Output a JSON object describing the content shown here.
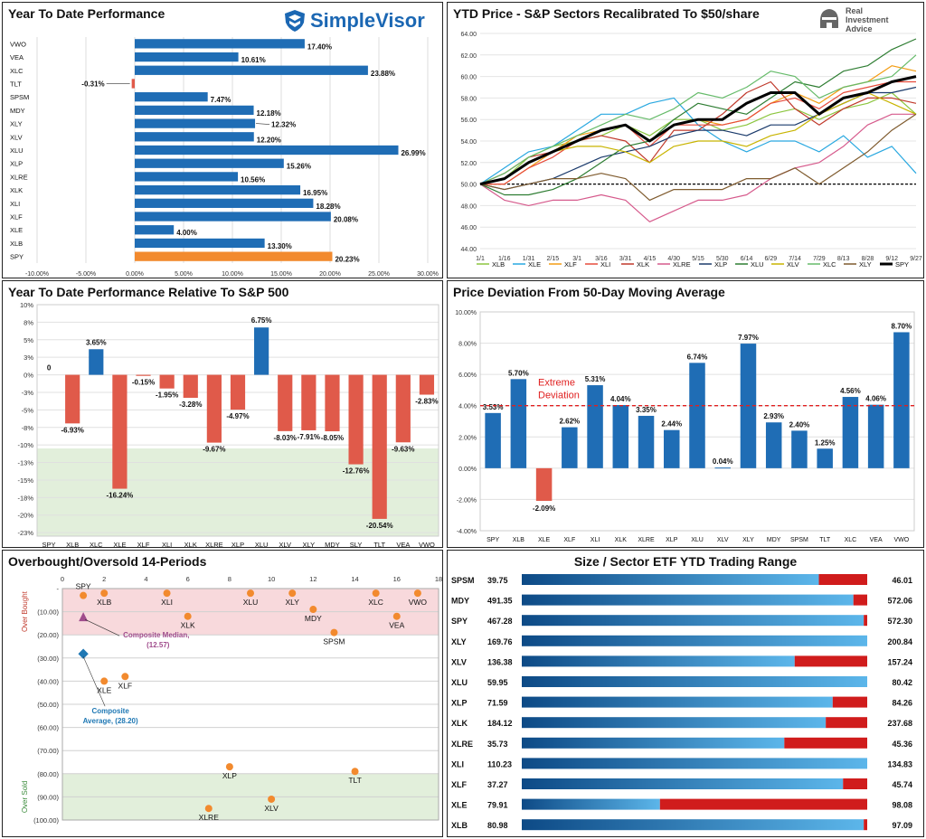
{
  "panels": {
    "ytd": {
      "title": "Year To Date Performance",
      "logo_text": "SimpleVisor"
    },
    "price": {
      "title": "YTD Price - S&P Sectors Recalibrated To $50/share",
      "logo_text": [
        "Real",
        "Investment",
        "Advice"
      ]
    },
    "relative": {
      "title": "Year To Date Performance Relative To S&P 500"
    },
    "deviation": {
      "title": "Price Deviation From 50-Day Moving Average"
    },
    "obos": {
      "title": "Overbought/Oversold 14-Periods"
    },
    "range": {
      "title": "Size / Sector ETF YTD Trading Range"
    }
  },
  "colors": {
    "blue": "#1f6db5",
    "orange": "#f28a2e",
    "red": "#e05a4a",
    "pink_zone": "#f8d9dc",
    "green_zone": "#e2efdb",
    "dash_red": "#e02020",
    "dark_red": "#d01c1c",
    "marker_purple": "#a04c8c",
    "marker_blue": "#1f78b4"
  },
  "chart_data": [
    {
      "id": "ytd_performance",
      "type": "bar",
      "orientation": "horizontal",
      "title": "Year To Date Performance",
      "categories": [
        "VWO",
        "VEA",
        "XLC",
        "TLT",
        "SPSM",
        "MDY",
        "XLY",
        "XLV",
        "XLU",
        "XLP",
        "XLRE",
        "XLK",
        "XLI",
        "XLF",
        "XLE",
        "XLB",
        "SPY"
      ],
      "values": [
        17.4,
        10.61,
        23.88,
        -0.31,
        7.47,
        12.18,
        12.32,
        12.2,
        26.99,
        15.26,
        10.56,
        16.95,
        18.28,
        20.08,
        4.0,
        13.3,
        20.23
      ],
      "value_labels": [
        "17.40%",
        "10.61%",
        "23.88%",
        "-0.31%",
        "7.47%",
        "12.18%",
        "12.32%",
        "12.20%",
        "26.99%",
        "15.26%",
        "10.56%",
        "16.95%",
        "18.28%",
        "20.08%",
        "4.00%",
        "13.30%",
        "20.23%"
      ],
      "highlight": "SPY",
      "xlim": [
        -10,
        30
      ],
      "xticks": [
        "-10.00%",
        "-5.00%",
        "0.00%",
        "5.00%",
        "10.00%",
        "15.00%",
        "20.00%",
        "25.00%",
        "30.00%"
      ],
      "grid": true
    },
    {
      "id": "ytd_price",
      "type": "line",
      "title": "YTD Price - S&P Sectors Recalibrated To $50/share",
      "x_ticks": [
        "1/1",
        "1/16",
        "1/31",
        "2/15",
        "3/1",
        "3/16",
        "3/31",
        "4/15",
        "4/30",
        "5/15",
        "5/30",
        "6/14",
        "6/29",
        "7/14",
        "7/29",
        "8/13",
        "8/28",
        "9/12",
        "9/27"
      ],
      "ylim": [
        44,
        64
      ],
      "y_ticks": [
        "44.00",
        "46.00",
        "48.00",
        "50.00",
        "52.00",
        "54.00",
        "56.00",
        "58.00",
        "60.00",
        "62.00",
        "64.00"
      ],
      "baseline": 50,
      "legend_position": "bottom",
      "series": [
        {
          "name": "XLB",
          "color": "#8cc63f",
          "values": [
            50,
            50.5,
            52.5,
            53.5,
            54,
            54.5,
            55.5,
            54.5,
            56,
            56,
            55,
            55.5,
            56.5,
            57,
            56,
            57,
            57.5,
            58.5,
            56.5
          ]
        },
        {
          "name": "XLE",
          "color": "#29a8e0",
          "values": [
            50,
            51.5,
            53,
            53.5,
            55,
            56.5,
            56.5,
            57.5,
            58,
            55.5,
            54,
            53,
            54,
            54,
            53,
            54.5,
            52.5,
            53.5,
            51
          ]
        },
        {
          "name": "XLF",
          "color": "#f39c12",
          "values": [
            50,
            50,
            51.5,
            53,
            54.5,
            55,
            55.5,
            54,
            55.5,
            56,
            55.5,
            56,
            57.5,
            58.5,
            57.5,
            59,
            59.5,
            61,
            60.5
          ]
        },
        {
          "name": "XLI",
          "color": "#e74c3c",
          "values": [
            50,
            50,
            51.5,
            52.5,
            54,
            55,
            55.5,
            53.5,
            55.5,
            55.5,
            55.5,
            56,
            57.5,
            58,
            57,
            58.5,
            59,
            59.5,
            59.5
          ]
        },
        {
          "name": "XLK",
          "color": "#c0392b",
          "values": [
            50,
            51,
            52.5,
            53,
            54,
            54.5,
            54,
            52,
            55,
            55,
            56.5,
            58.5,
            59.5,
            57,
            55.5,
            57,
            58,
            58,
            57.5
          ]
        },
        {
          "name": "XLRE",
          "color": "#d65a8c",
          "values": [
            50,
            48.5,
            48,
            48.5,
            48.5,
            49,
            48.5,
            46.5,
            47.5,
            48.5,
            48.5,
            49,
            50.5,
            51.5,
            52,
            53.5,
            55.5,
            56.5,
            56.5
          ]
        },
        {
          "name": "XLP",
          "color": "#1a3a6b",
          "values": [
            50,
            49.5,
            50,
            50.5,
            51.5,
            52.5,
            53,
            53.5,
            54.5,
            55,
            55,
            54.5,
            55.5,
            55.5,
            56.5,
            57.5,
            58.5,
            58.5,
            59
          ]
        },
        {
          "name": "XLU",
          "color": "#2e7d32",
          "values": [
            50,
            49,
            49,
            49.5,
            50.5,
            52,
            53.5,
            54,
            56,
            57.5,
            57,
            56.5,
            58,
            59.5,
            59,
            60.5,
            61,
            62.5,
            63.5
          ]
        },
        {
          "name": "XLV",
          "color": "#c8b400",
          "values": [
            50,
            50.5,
            52,
            53,
            53.5,
            53.5,
            53,
            52,
            53.5,
            54,
            54,
            53.5,
            54.5,
            55,
            56.5,
            57.5,
            58.5,
            57.5,
            56.5
          ]
        },
        {
          "name": "XLC",
          "color": "#66bb6a",
          "values": [
            50,
            51,
            52.5,
            53.5,
            54.5,
            55.5,
            56.5,
            56,
            57,
            58.5,
            58,
            59,
            60.5,
            60,
            58,
            59,
            59.5,
            60,
            62
          ]
        },
        {
          "name": "XLY",
          "color": "#7f5b2e",
          "values": [
            50,
            49.5,
            50,
            50.5,
            50.5,
            51,
            50.5,
            48.5,
            49.5,
            49.5,
            49.5,
            50.5,
            50.5,
            51.5,
            50,
            51.5,
            53,
            55,
            56.5
          ]
        },
        {
          "name": "SPY",
          "color": "#000000",
          "values": [
            50,
            50.5,
            52,
            53,
            54,
            55,
            55.5,
            54,
            55.5,
            56,
            56,
            57.5,
            58.5,
            58.5,
            56.5,
            58,
            58.5,
            59.5,
            60
          ]
        }
      ]
    },
    {
      "id": "relative_performance",
      "type": "bar",
      "title": "Year To Date Performance Relative To S&P 500",
      "categories": [
        "SPY",
        "XLB",
        "XLC",
        "XLE",
        "XLF",
        "XLI",
        "XLK",
        "XLRE",
        "XLP",
        "XLU",
        "XLV",
        "XLY",
        "MDY",
        "SLY",
        "TLT",
        "VEA",
        "VWO"
      ],
      "values": [
        0,
        -6.93,
        3.65,
        -16.24,
        -0.15,
        -1.95,
        -3.28,
        -9.67,
        -4.97,
        6.75,
        -8.03,
        -7.91,
        -8.05,
        -12.76,
        -20.54,
        -9.63,
        -2.83
      ],
      "value_labels": [
        "0",
        "-6.93%",
        "3.65%",
        "-16.24%",
        "-0.15%",
        "-1.95%",
        "-3.28%",
        "-9.67%",
        "-4.97%",
        "6.75%",
        "-8.03%",
        "-7.91%",
        "-8.05%",
        "-12.76%",
        "-20.54%",
        "-9.63%",
        "-2.83%"
      ],
      "ylim": [
        -23,
        10
      ],
      "y_ticks": [
        "10%",
        "8%",
        "5%",
        "3%",
        "0%",
        "-3%",
        "-5%",
        "-8%",
        "-10%",
        "-13%",
        "-15%",
        "-18%",
        "-20%",
        "-23%"
      ],
      "shaded_zone_below": -10.5,
      "grid": true
    },
    {
      "id": "ma_deviation",
      "type": "bar",
      "title": "Price Deviation From 50-Day Moving Average",
      "categories": [
        "SPY",
        "XLB",
        "XLE",
        "XLF",
        "XLI",
        "XLK",
        "XLRE",
        "XLP",
        "XLU",
        "XLV",
        "XLY",
        "MDY",
        "SPSM",
        "TLT",
        "XLC",
        "VEA",
        "VWO"
      ],
      "values": [
        3.53,
        5.7,
        -2.09,
        2.62,
        5.31,
        4.04,
        3.35,
        2.44,
        6.74,
        0.04,
        7.97,
        2.93,
        2.4,
        1.25,
        4.56,
        4.06,
        8.7
      ],
      "value_labels": [
        "3.53%",
        "5.70%",
        "-2.09%",
        "2.62%",
        "5.31%",
        "4.04%",
        "3.35%",
        "2.44%",
        "6.74%",
        "0.04%",
        "7.97%",
        "2.93%",
        "2.40%",
        "1.25%",
        "4.56%",
        "4.06%",
        "8.70%"
      ],
      "ylim": [
        -4,
        10
      ],
      "y_ticks": [
        "10.00%",
        "8.00%",
        "6.00%",
        "4.00%",
        "2.00%",
        "0.00%",
        "-2.00%",
        "-4.00%"
      ],
      "threshold": 4,
      "threshold_label": [
        "Extreme",
        "Deviation"
      ],
      "grid": true
    },
    {
      "id": "overbought_oversold",
      "type": "scatter",
      "title": "Overbought/Oversold 14-Periods",
      "xlim": [
        0,
        18
      ],
      "x_ticks": [
        "0",
        "2",
        "4",
        "6",
        "8",
        "10",
        "12",
        "14",
        "16",
        "18"
      ],
      "ylim": [
        0,
        100
      ],
      "y_ticks": [
        "-",
        "(10.00)",
        "(20.00)",
        "(30.00)",
        "(40.00)",
        "(50.00)",
        "(60.00)",
        "(70.00)",
        "(80.00)",
        "(90.00)",
        "(100.00)"
      ],
      "zones": [
        {
          "label": "Over Bought",
          "from": 0,
          "to": 20
        },
        {
          "label": "Over Sold",
          "from": 80,
          "to": 100
        }
      ],
      "points": [
        {
          "label": "SPY",
          "x": 1,
          "y": 3
        },
        {
          "label": "XLB",
          "x": 2,
          "y": 2
        },
        {
          "label": "XLI",
          "x": 5,
          "y": 2
        },
        {
          "label": "XLK",
          "x": 6,
          "y": 12
        },
        {
          "label": "XLU",
          "x": 9,
          "y": 2
        },
        {
          "label": "XLY",
          "x": 11,
          "y": 2
        },
        {
          "label": "MDY",
          "x": 12,
          "y": 9
        },
        {
          "label": "SPSM",
          "x": 13,
          "y": 19
        },
        {
          "label": "XLC",
          "x": 15,
          "y": 2
        },
        {
          "label": "VWO",
          "x": 17,
          "y": 2
        },
        {
          "label": "VEA",
          "x": 16,
          "y": 12
        },
        {
          "label": "XLE",
          "x": 2,
          "y": 40
        },
        {
          "label": "XLF",
          "x": 3,
          "y": 38
        },
        {
          "label": "XLP",
          "x": 8,
          "y": 77
        },
        {
          "label": "TLT",
          "x": 14,
          "y": 79
        },
        {
          "label": "XLV",
          "x": 10,
          "y": 91
        },
        {
          "label": "XLRE",
          "x": 7,
          "y": 95
        }
      ],
      "composite_median": {
        "label": [
          "Composite Median,",
          "(12.57)"
        ],
        "x": 1,
        "y": 12.57
      },
      "composite_average": {
        "label": [
          "Composite",
          "Average, (28.20)"
        ],
        "x": 1,
        "y": 28.2
      }
    },
    {
      "id": "trading_range",
      "type": "bar",
      "title": "Size / Sector ETF YTD Trading Range",
      "rows": [
        {
          "ticker": "SPSM",
          "low": "39.75",
          "high": "46.01",
          "position": 0.86
        },
        {
          "ticker": "MDY",
          "low": "491.35",
          "high": "572.06",
          "position": 0.96
        },
        {
          "ticker": "SPY",
          "low": "467.28",
          "high": "572.30",
          "position": 0.99
        },
        {
          "ticker": "XLY",
          "low": "169.76",
          "high": "200.84",
          "position": 1.0
        },
        {
          "ticker": "XLV",
          "low": "136.38",
          "high": "157.24",
          "position": 0.79
        },
        {
          "ticker": "XLU",
          "low": "59.95",
          "high": "80.42",
          "position": 1.0
        },
        {
          "ticker": "XLP",
          "low": "71.59",
          "high": "84.26",
          "position": 0.9
        },
        {
          "ticker": "XLK",
          "low": "184.12",
          "high": "237.68",
          "position": 0.88
        },
        {
          "ticker": "XLRE",
          "low": "35.73",
          "high": "45.36",
          "position": 0.76
        },
        {
          "ticker": "XLI",
          "low": "110.23",
          "high": "134.83",
          "position": 1.0
        },
        {
          "ticker": "XLF",
          "low": "37.27",
          "high": "45.74",
          "position": 0.93
        },
        {
          "ticker": "XLE",
          "low": "79.91",
          "high": "98.08",
          "position": 0.4
        },
        {
          "ticker": "XLB",
          "low": "80.98",
          "high": "97.09",
          "position": 0.99
        }
      ]
    }
  ]
}
